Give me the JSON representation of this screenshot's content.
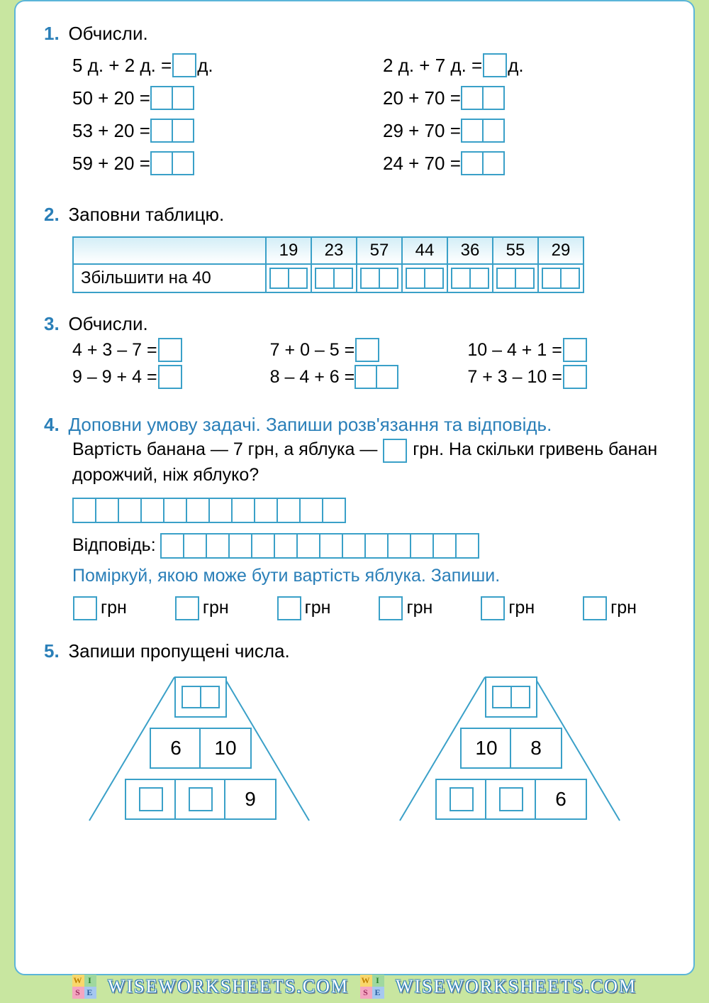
{
  "colors": {
    "accent": "#2a7fb8",
    "box_border": "#3aa0c8",
    "page_bg": "#c8e6a0"
  },
  "task1": {
    "num": "1.",
    "title": "Обчисли.",
    "left": [
      {
        "pre": "5 д. + 2 д. = ",
        "boxes": 1,
        "post": " д."
      },
      {
        "pre": "50 + 20 = ",
        "boxes": 2,
        "post": ""
      },
      {
        "pre": "53 + 20 = ",
        "boxes": 2,
        "post": ""
      },
      {
        "pre": "59 + 20 = ",
        "boxes": 2,
        "post": ""
      }
    ],
    "right": [
      {
        "pre": "2 д. + 7 д. = ",
        "boxes": 1,
        "post": " д."
      },
      {
        "pre": "20 + 70 = ",
        "boxes": 2,
        "post": ""
      },
      {
        "pre": "29 + 70 = ",
        "boxes": 2,
        "post": ""
      },
      {
        "pre": "24 + 70 = ",
        "boxes": 2,
        "post": ""
      }
    ]
  },
  "task2": {
    "num": "2.",
    "title": "Заповни таблицю.",
    "row_label": "Збільшити на 40",
    "headers": [
      "19",
      "23",
      "57",
      "44",
      "36",
      "55",
      "29"
    ]
  },
  "task3": {
    "num": "3.",
    "title": "Обчисли.",
    "col1": [
      {
        "pre": "4 + 3 – 7 = ",
        "boxes": 1
      },
      {
        "pre": "9 – 9 + 4 = ",
        "boxes": 1
      }
    ],
    "col2": [
      {
        "pre": "7 + 0 – 5 = ",
        "boxes": 1
      },
      {
        "pre": "8 – 4 + 6 = ",
        "boxes": 2
      }
    ],
    "col3": [
      {
        "pre": "10 – 4 + 1 = ",
        "boxes": 1
      },
      {
        "pre": "7 + 3 – 10 = ",
        "boxes": 1
      }
    ]
  },
  "task4": {
    "num": "4.",
    "title": "Доповни умову задачі. Запиши розв'язання та відповідь.",
    "text1": "Вартість банана — 7 грн, а яблука — ",
    "text2": " грн. На скільки гривень банан дорожчий, ніж яблуко?",
    "work_boxes": 12,
    "answer_label": "Відповідь: ",
    "answer_boxes": 14,
    "hint": "Поміркуй, якою може бути вартість яблука. Запиши.",
    "hrn": "грн",
    "hrn_count": 6
  },
  "task5": {
    "num": "5.",
    "title": "Запиши пропущені числа.",
    "pyr1": {
      "top": "",
      "mid": [
        "6",
        "10"
      ],
      "bot": [
        "",
        "",
        "9"
      ]
    },
    "pyr2": {
      "top": "",
      "mid": [
        "10",
        "8"
      ],
      "bot": [
        "",
        "",
        "6"
      ]
    }
  },
  "watermark": "WISEWORKSHEETS.COM"
}
